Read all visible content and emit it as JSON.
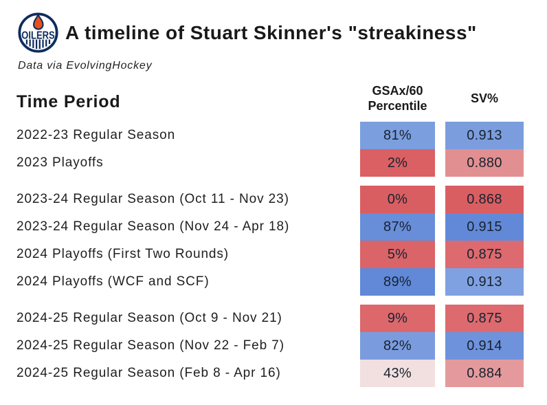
{
  "header": {
    "title": "A timeline of Stuart Skinner's \"streakiness\"",
    "subtitle": "Data via EvolvingHockey",
    "logo_text": "OILERS"
  },
  "colors": {
    "navy": "#0e2c5e",
    "orange": "#e8501e",
    "text": "#19191b"
  },
  "chart_data": {
    "type": "table",
    "title": "A timeline of Stuart Skinner's \"streakiness\"",
    "columns": [
      "Time Period",
      "GSAx/60 Percentile",
      "SV%"
    ],
    "col_headers": {
      "time": "Time Period",
      "pct_line1": "GSAx/60",
      "pct_line2": "Percentile",
      "sv": "SV%"
    },
    "rows": [
      {
        "label": "2022-23 Regular Season",
        "percentile": "81%",
        "percentile_color": "#7b9ede",
        "sv": "0.913",
        "sv_color": "#7b9dde",
        "group": 0
      },
      {
        "label": "2023 Playoffs",
        "percentile": "2%",
        "percentile_color": "#da6064",
        "sv": "0.880",
        "sv_color": "#e28f91",
        "group": 0
      },
      {
        "label": "2023-24 Regular Season (Oct 11 - Nov 23)",
        "percentile": "0%",
        "percentile_color": "#d95e62",
        "sv": "0.868",
        "sv_color": "#d95e62",
        "group": 1
      },
      {
        "label": "2023-24 Regular Season (Nov 24 - Apr 18)",
        "percentile": "87%",
        "percentile_color": "#688dd9",
        "sv": "0.915",
        "sv_color": "#6289d8",
        "group": 1
      },
      {
        "label": "2024 Playoffs (First Two Rounds)",
        "percentile": "5%",
        "percentile_color": "#db6468",
        "sv": "0.875",
        "sv_color": "#dc6a6e",
        "group": 1
      },
      {
        "label": "2024 Playoffs (WCF and SCF)",
        "percentile": "89%",
        "percentile_color": "#6189d8",
        "sv": "0.913",
        "sv_color": "#7fa1e1",
        "group": 1
      },
      {
        "label": "2024-25 Regular Season (Oct 9 - Nov 21)",
        "percentile": "9%",
        "percentile_color": "#dc686c",
        "sv": "0.875",
        "sv_color": "#dc6a6e",
        "group": 2
      },
      {
        "label": "2024-25 Regular Season (Nov 22 - Feb 7)",
        "percentile": "82%",
        "percentile_color": "#7a9cde",
        "sv": "0.914",
        "sv_color": "#6e92db",
        "group": 2
      },
      {
        "label": "2024-25 Regular Season (Feb 8 - Apr 16)",
        "percentile": "43%",
        "percentile_color": "#f2e0e0",
        "sv": "0.884",
        "sv_color": "#e49a9c",
        "group": 2
      }
    ]
  }
}
